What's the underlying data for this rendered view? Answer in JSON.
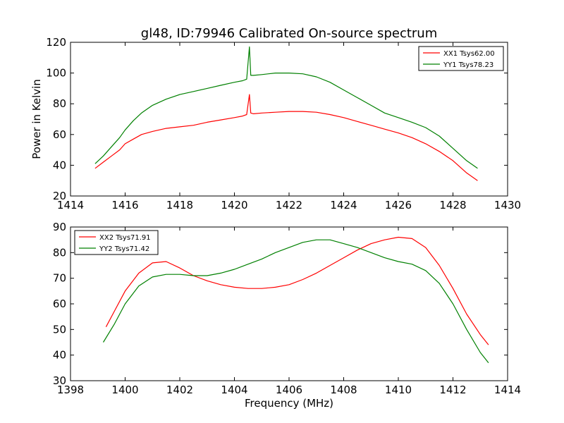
{
  "chart_data": [
    {
      "type": "line",
      "title": "gl48, ID:79946 Calibrated On-source spectrum",
      "xlabel": "",
      "ylabel": "Power in Kelvin",
      "xlim": [
        1414,
        1430
      ],
      "ylim": [
        20,
        120
      ],
      "xticks": [
        1414,
        1416,
        1418,
        1420,
        1422,
        1424,
        1426,
        1428,
        1430
      ],
      "yticks": [
        20,
        40,
        60,
        80,
        100,
        120
      ],
      "legend_position": "top-right",
      "series": [
        {
          "name": "XX1 Tsys62.00",
          "color": "#ff0000",
          "x": [
            1414.9,
            1415.2,
            1415.5,
            1415.8,
            1416.0,
            1416.3,
            1416.6,
            1417.0,
            1417.5,
            1418.0,
            1418.5,
            1419.0,
            1419.5,
            1420.0,
            1420.3,
            1420.45,
            1420.55,
            1420.6,
            1420.7,
            1421.0,
            1421.5,
            1422.0,
            1422.5,
            1423.0,
            1423.5,
            1424.0,
            1424.5,
            1425.0,
            1425.5,
            1426.0,
            1426.5,
            1427.0,
            1427.5,
            1428.0,
            1428.5,
            1428.9
          ],
          "y": [
            38,
            42,
            46,
            50,
            54,
            57,
            60,
            62,
            64,
            65,
            66,
            68,
            69.5,
            71,
            72,
            73,
            86,
            74,
            73.5,
            74,
            74.5,
            75,
            75,
            74.5,
            73,
            71,
            68.5,
            66,
            63.5,
            61,
            58,
            54,
            49,
            43,
            35,
            30
          ]
        },
        {
          "name": "YY1 Tsys78.23",
          "color": "#008000",
          "x": [
            1414.9,
            1415.2,
            1415.5,
            1415.8,
            1416.0,
            1416.3,
            1416.6,
            1417.0,
            1417.5,
            1418.0,
            1418.5,
            1419.0,
            1419.5,
            1420.0,
            1420.3,
            1420.45,
            1420.55,
            1420.6,
            1420.7,
            1421.0,
            1421.5,
            1422.0,
            1422.5,
            1423.0,
            1423.5,
            1424.0,
            1424.5,
            1425.0,
            1425.5,
            1426.0,
            1426.5,
            1427.0,
            1427.5,
            1428.0,
            1428.5,
            1428.9
          ],
          "y": [
            41,
            46,
            52,
            58,
            63,
            69,
            74,
            79,
            83,
            86,
            88,
            90,
            92,
            94,
            95,
            96,
            117,
            98.5,
            98.5,
            99,
            100,
            100,
            99.5,
            97.5,
            94,
            89,
            84,
            79,
            74,
            71,
            68,
            64.5,
            59,
            51,
            43,
            38
          ]
        }
      ]
    },
    {
      "type": "line",
      "title": "",
      "xlabel": "Frequency (MHz)",
      "ylabel": "",
      "xlim": [
        1398,
        1414
      ],
      "ylim": [
        30,
        90
      ],
      "xticks": [
        1398,
        1400,
        1402,
        1404,
        1406,
        1408,
        1410,
        1412,
        1414
      ],
      "yticks": [
        30,
        40,
        50,
        60,
        70,
        80,
        90
      ],
      "legend_position": "top-left",
      "series": [
        {
          "name": "XX2 Tsys71.91",
          "color": "#ff0000",
          "x": [
            1399.3,
            1399.6,
            1400.0,
            1400.5,
            1401.0,
            1401.5,
            1402.0,
            1402.5,
            1403.0,
            1403.5,
            1404.0,
            1404.5,
            1405.0,
            1405.5,
            1406.0,
            1406.5,
            1407.0,
            1407.5,
            1408.0,
            1408.5,
            1409.0,
            1409.5,
            1410.0,
            1410.5,
            1411.0,
            1411.5,
            1412.0,
            1412.5,
            1413.0,
            1413.3
          ],
          "y": [
            51,
            57,
            65,
            72,
            76,
            76.5,
            74,
            71,
            69,
            67.5,
            66.5,
            66,
            66,
            66.5,
            67.5,
            69.5,
            72,
            75,
            78,
            81,
            83.5,
            85,
            86,
            85.5,
            82,
            75,
            66,
            56,
            48,
            44
          ]
        },
        {
          "name": "YY2 Tsys71.42",
          "color": "#008000",
          "x": [
            1399.2,
            1399.6,
            1400.0,
            1400.5,
            1401.0,
            1401.5,
            1402.0,
            1402.5,
            1403.0,
            1403.5,
            1404.0,
            1404.5,
            1405.0,
            1405.5,
            1406.0,
            1406.5,
            1407.0,
            1407.5,
            1408.0,
            1408.5,
            1409.0,
            1409.5,
            1410.0,
            1410.5,
            1411.0,
            1411.5,
            1412.0,
            1412.5,
            1413.0,
            1413.3
          ],
          "y": [
            45,
            52,
            60,
            67,
            70.5,
            71.5,
            71.5,
            71,
            71,
            72,
            73.5,
            75.5,
            77.5,
            80,
            82,
            84,
            85,
            85,
            83.5,
            82,
            80,
            78,
            76.5,
            75.5,
            73,
            68,
            60,
            50,
            41,
            37
          ]
        }
      ]
    }
  ]
}
